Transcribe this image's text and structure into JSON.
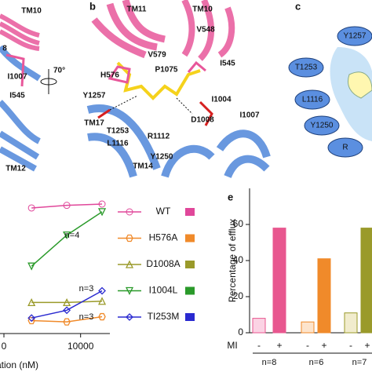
{
  "panels": {
    "left": {
      "labels": [
        "TM10",
        "8",
        "I1007",
        "I545",
        "TM12"
      ],
      "rotation": "70°"
    },
    "b": {
      "letter": "b",
      "labels": [
        "TM11",
        "TM10",
        "V548",
        "V579",
        "I545",
        "H576",
        "P1075",
        "Y1257",
        "I1004",
        "I1007",
        "D1008",
        "TM17",
        "T1253",
        "L1116",
        "R1112",
        "Y1250",
        "TM14"
      ]
    },
    "c": {
      "letter": "c",
      "labels": [
        "Y1257",
        "T1253",
        "L1116",
        "Y1250",
        "R"
      ]
    }
  },
  "chart_data": [
    {
      "type": "line",
      "x_label": "ation (nM)",
      "x": [
        6800,
        9100,
        11400
      ],
      "xlim": [
        5000,
        11500
      ],
      "xticks": [
        {
          "value": 5000,
          "label": "0"
        },
        10000
      ],
      "ylim": [
        0,
        100
      ],
      "series": [
        {
          "name": "WT",
          "color": "#e0479a",
          "marker": "circle",
          "values": [
            97,
            99,
            100
          ]
        },
        {
          "name": "H576A",
          "color": "#f08a2a",
          "marker": "hexagon",
          "values": [
            10,
            9,
            13
          ]
        },
        {
          "name": "D1008A",
          "color": "#9a9a2a",
          "marker": "triangle-up",
          "values": [
            24,
            24,
            25
          ]
        },
        {
          "name": "I1004L",
          "color": "#2a9a2a",
          "marker": "triangle-down",
          "values": [
            52,
            76,
            94
          ]
        },
        {
          "name": "TI253M",
          "color": "#2a2ad0",
          "marker": "diamond",
          "values": [
            12,
            18,
            33
          ]
        }
      ],
      "annotations": [
        "n=4",
        "n=3",
        "n=3"
      ]
    },
    {
      "type": "bar",
      "letter": "e",
      "y_label": "Percentage of efflux",
      "x_label": "MI",
      "categories": [
        "-",
        "+",
        "-",
        "+",
        "-",
        "+"
      ],
      "values": [
        8,
        58,
        6,
        41,
        11,
        58
      ],
      "colors": [
        "#fbd3e4",
        "#e8578f",
        "#fde4cc",
        "#f08a2a",
        "#f1eccd",
        "#9a9a2a"
      ],
      "group_labels": [
        "n=8",
        "n=6",
        "n=7"
      ],
      "ylim": [
        0,
        80
      ],
      "yticks": [
        0,
        20,
        40,
        60
      ]
    }
  ]
}
